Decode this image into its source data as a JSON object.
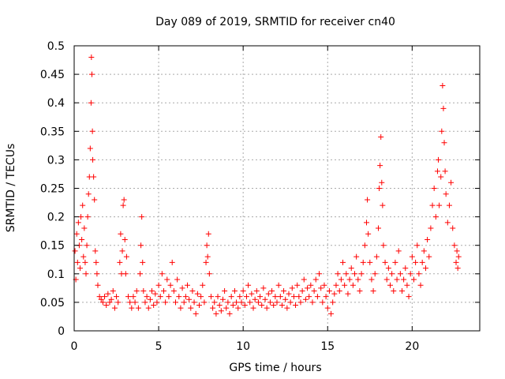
{
  "chart_data": {
    "type": "scatter",
    "title": "Day 089 of 2019, SRMTID for receiver cn40",
    "xlabel": "GPS time / hours",
    "ylabel": "SRMTID / TECUs",
    "xlim": [
      0,
      24
    ],
    "ylim": [
      0,
      0.5
    ],
    "xticks": [
      0,
      5,
      10,
      15,
      20
    ],
    "xtick_labels": [
      "0",
      "5",
      "10",
      "15",
      "20"
    ],
    "yticks": [
      0,
      0.05,
      0.1,
      0.15,
      0.2,
      0.25,
      0.3,
      0.35,
      0.4,
      0.45,
      0.5
    ],
    "ytick_labels": [
      "0",
      "0.05",
      "0.1",
      "0.15",
      "0.2",
      "0.25",
      "0.3",
      "0.35",
      "0.4",
      "0.45",
      "0.5"
    ],
    "grid": true,
    "marker": "+",
    "color": "#ff0000",
    "series": [
      {
        "name": "SRMTID",
        "points": [
          [
            0.05,
            0.14
          ],
          [
            0.1,
            0.09
          ],
          [
            0.15,
            0.17
          ],
          [
            0.2,
            0.12
          ],
          [
            0.25,
            0.19
          ],
          [
            0.3,
            0.15
          ],
          [
            0.35,
            0.11
          ],
          [
            0.4,
            0.2
          ],
          [
            0.45,
            0.16
          ],
          [
            0.5,
            0.22
          ],
          [
            0.55,
            0.13
          ],
          [
            0.6,
            0.18
          ],
          [
            0.65,
            0.12
          ],
          [
            0.7,
            0.1
          ],
          [
            0.75,
            0.15
          ],
          [
            0.8,
            0.2
          ],
          [
            0.85,
            0.24
          ],
          [
            0.9,
            0.27
          ],
          [
            0.95,
            0.32
          ],
          [
            1.0,
            0.4
          ],
          [
            1.02,
            0.48
          ],
          [
            1.05,
            0.45
          ],
          [
            1.08,
            0.35
          ],
          [
            1.1,
            0.3
          ],
          [
            1.15,
            0.27
          ],
          [
            1.2,
            0.23
          ],
          [
            1.25,
            0.14
          ],
          [
            1.3,
            0.12
          ],
          [
            1.35,
            0.1
          ],
          [
            1.4,
            0.08
          ],
          [
            1.5,
            0.06
          ],
          [
            1.6,
            0.055
          ],
          [
            1.7,
            0.05
          ],
          [
            1.8,
            0.06
          ],
          [
            1.9,
            0.045
          ],
          [
            2.0,
            0.065
          ],
          [
            2.1,
            0.05
          ],
          [
            2.2,
            0.055
          ],
          [
            2.3,
            0.07
          ],
          [
            2.4,
            0.04
          ],
          [
            2.5,
            0.06
          ],
          [
            2.6,
            0.05
          ],
          [
            2.7,
            0.12
          ],
          [
            2.75,
            0.17
          ],
          [
            2.8,
            0.1
          ],
          [
            2.85,
            0.14
          ],
          [
            2.9,
            0.22
          ],
          [
            2.95,
            0.23
          ],
          [
            3.0,
            0.16
          ],
          [
            3.05,
            0.1
          ],
          [
            3.1,
            0.13
          ],
          [
            3.2,
            0.06
          ],
          [
            3.3,
            0.05
          ],
          [
            3.4,
            0.04
          ],
          [
            3.5,
            0.06
          ],
          [
            3.6,
            0.05
          ],
          [
            3.7,
            0.07
          ],
          [
            3.8,
            0.04
          ],
          [
            3.9,
            0.1
          ],
          [
            3.95,
            0.15
          ],
          [
            4.0,
            0.2
          ],
          [
            4.05,
            0.12
          ],
          [
            4.1,
            0.07
          ],
          [
            4.2,
            0.05
          ],
          [
            4.3,
            0.06
          ],
          [
            4.4,
            0.04
          ],
          [
            4.5,
            0.055
          ],
          [
            4.6,
            0.07
          ],
          [
            4.7,
            0.045
          ],
          [
            4.8,
            0.065
          ],
          [
            4.9,
            0.05
          ],
          [
            5.0,
            0.08
          ],
          [
            5.1,
            0.06
          ],
          [
            5.2,
            0.1
          ],
          [
            5.3,
            0.07
          ],
          [
            5.4,
            0.05
          ],
          [
            5.5,
            0.09
          ],
          [
            5.6,
            0.06
          ],
          [
            5.7,
            0.08
          ],
          [
            5.8,
            0.12
          ],
          [
            5.9,
            0.07
          ],
          [
            6.0,
            0.05
          ],
          [
            6.1,
            0.09
          ],
          [
            6.2,
            0.06
          ],
          [
            6.3,
            0.04
          ],
          [
            6.4,
            0.075
          ],
          [
            6.5,
            0.05
          ],
          [
            6.6,
            0.06
          ],
          [
            6.7,
            0.08
          ],
          [
            6.8,
            0.055
          ],
          [
            6.9,
            0.04
          ],
          [
            7.0,
            0.07
          ],
          [
            7.1,
            0.05
          ],
          [
            7.2,
            0.03
          ],
          [
            7.3,
            0.065
          ],
          [
            7.4,
            0.045
          ],
          [
            7.5,
            0.06
          ],
          [
            7.6,
            0.08
          ],
          [
            7.7,
            0.05
          ],
          [
            7.8,
            0.12
          ],
          [
            7.85,
            0.15
          ],
          [
            7.9,
            0.13
          ],
          [
            7.95,
            0.17
          ],
          [
            8.0,
            0.1
          ],
          [
            8.1,
            0.06
          ],
          [
            8.2,
            0.04
          ],
          [
            8.3,
            0.05
          ],
          [
            8.4,
            0.03
          ],
          [
            8.5,
            0.06
          ],
          [
            8.6,
            0.045
          ],
          [
            8.7,
            0.035
          ],
          [
            8.8,
            0.055
          ],
          [
            8.9,
            0.07
          ],
          [
            9.0,
            0.04
          ],
          [
            9.1,
            0.05
          ],
          [
            9.2,
            0.03
          ],
          [
            9.3,
            0.06
          ],
          [
            9.4,
            0.045
          ],
          [
            9.5,
            0.07
          ],
          [
            9.6,
            0.05
          ],
          [
            9.7,
            0.04
          ],
          [
            9.8,
            0.06
          ],
          [
            9.9,
            0.05
          ],
          [
            10.0,
            0.07
          ],
          [
            10.1,
            0.045
          ],
          [
            10.2,
            0.06
          ],
          [
            10.3,
            0.08
          ],
          [
            10.4,
            0.05
          ],
          [
            10.5,
            0.065
          ],
          [
            10.6,
            0.04
          ],
          [
            10.7,
            0.055
          ],
          [
            10.8,
            0.07
          ],
          [
            10.9,
            0.05
          ],
          [
            11.0,
            0.06
          ],
          [
            11.1,
            0.045
          ],
          [
            11.2,
            0.075
          ],
          [
            11.3,
            0.055
          ],
          [
            11.4,
            0.04
          ],
          [
            11.5,
            0.065
          ],
          [
            11.6,
            0.05
          ],
          [
            11.7,
            0.07
          ],
          [
            11.8,
            0.045
          ],
          [
            11.9,
            0.06
          ],
          [
            12.0,
            0.05
          ],
          [
            12.1,
            0.08
          ],
          [
            12.2,
            0.06
          ],
          [
            12.3,
            0.045
          ],
          [
            12.4,
            0.07
          ],
          [
            12.5,
            0.055
          ],
          [
            12.6,
            0.04
          ],
          [
            12.7,
            0.065
          ],
          [
            12.8,
            0.05
          ],
          [
            12.9,
            0.075
          ],
          [
            13.0,
            0.06
          ],
          [
            13.1,
            0.045
          ],
          [
            13.2,
            0.08
          ],
          [
            13.3,
            0.06
          ],
          [
            13.4,
            0.05
          ],
          [
            13.5,
            0.07
          ],
          [
            13.6,
            0.09
          ],
          [
            13.7,
            0.055
          ],
          [
            13.8,
            0.075
          ],
          [
            13.9,
            0.06
          ],
          [
            14.0,
            0.08
          ],
          [
            14.1,
            0.05
          ],
          [
            14.2,
            0.07
          ],
          [
            14.3,
            0.09
          ],
          [
            14.4,
            0.06
          ],
          [
            14.5,
            0.1
          ],
          [
            14.6,
            0.075
          ],
          [
            14.7,
            0.05
          ],
          [
            14.8,
            0.08
          ],
          [
            14.9,
            0.06
          ],
          [
            15.0,
            0.04
          ],
          [
            15.1,
            0.07
          ],
          [
            15.2,
            0.03
          ],
          [
            15.3,
            0.05
          ],
          [
            15.4,
            0.065
          ],
          [
            15.5,
            0.08
          ],
          [
            15.6,
            0.1
          ],
          [
            15.7,
            0.07
          ],
          [
            15.8,
            0.09
          ],
          [
            15.9,
            0.12
          ],
          [
            16.0,
            0.08
          ],
          [
            16.1,
            0.1
          ],
          [
            16.2,
            0.065
          ],
          [
            16.3,
            0.09
          ],
          [
            16.4,
            0.11
          ],
          [
            16.5,
            0.08
          ],
          [
            16.6,
            0.1
          ],
          [
            16.7,
            0.13
          ],
          [
            16.8,
            0.09
          ],
          [
            16.9,
            0.07
          ],
          [
            17.0,
            0.1
          ],
          [
            17.1,
            0.12
          ],
          [
            17.2,
            0.15
          ],
          [
            17.3,
            0.19
          ],
          [
            17.35,
            0.23
          ],
          [
            17.4,
            0.17
          ],
          [
            17.5,
            0.12
          ],
          [
            17.6,
            0.09
          ],
          [
            17.7,
            0.07
          ],
          [
            17.8,
            0.1
          ],
          [
            17.9,
            0.13
          ],
          [
            18.0,
            0.18
          ],
          [
            18.05,
            0.25
          ],
          [
            18.1,
            0.29
          ],
          [
            18.15,
            0.34
          ],
          [
            18.2,
            0.26
          ],
          [
            18.25,
            0.22
          ],
          [
            18.3,
            0.15
          ],
          [
            18.4,
            0.12
          ],
          [
            18.5,
            0.09
          ],
          [
            18.6,
            0.11
          ],
          [
            18.7,
            0.08
          ],
          [
            18.8,
            0.1
          ],
          [
            18.9,
            0.07
          ],
          [
            19.0,
            0.12
          ],
          [
            19.1,
            0.09
          ],
          [
            19.2,
            0.14
          ],
          [
            19.3,
            0.1
          ],
          [
            19.4,
            0.07
          ],
          [
            19.5,
            0.09
          ],
          [
            19.6,
            0.11
          ],
          [
            19.7,
            0.08
          ],
          [
            19.8,
            0.06
          ],
          [
            19.9,
            0.1
          ],
          [
            20.0,
            0.13
          ],
          [
            20.1,
            0.09
          ],
          [
            20.2,
            0.12
          ],
          [
            20.3,
            0.15
          ],
          [
            20.4,
            0.1
          ],
          [
            20.5,
            0.08
          ],
          [
            20.6,
            0.12
          ],
          [
            20.7,
            0.14
          ],
          [
            20.8,
            0.11
          ],
          [
            20.9,
            0.16
          ],
          [
            21.0,
            0.13
          ],
          [
            21.1,
            0.18
          ],
          [
            21.2,
            0.22
          ],
          [
            21.3,
            0.25
          ],
          [
            21.4,
            0.2
          ],
          [
            21.5,
            0.28
          ],
          [
            21.55,
            0.3
          ],
          [
            21.6,
            0.22
          ],
          [
            21.7,
            0.27
          ],
          [
            21.75,
            0.35
          ],
          [
            21.8,
            0.43
          ],
          [
            21.85,
            0.39
          ],
          [
            21.9,
            0.33
          ],
          [
            21.95,
            0.28
          ],
          [
            22.0,
            0.24
          ],
          [
            22.1,
            0.19
          ],
          [
            22.2,
            0.22
          ],
          [
            22.3,
            0.26
          ],
          [
            22.4,
            0.18
          ],
          [
            22.5,
            0.15
          ],
          [
            22.6,
            0.12
          ],
          [
            22.65,
            0.14
          ],
          [
            22.7,
            0.11
          ],
          [
            22.75,
            0.13
          ]
        ]
      }
    ]
  }
}
